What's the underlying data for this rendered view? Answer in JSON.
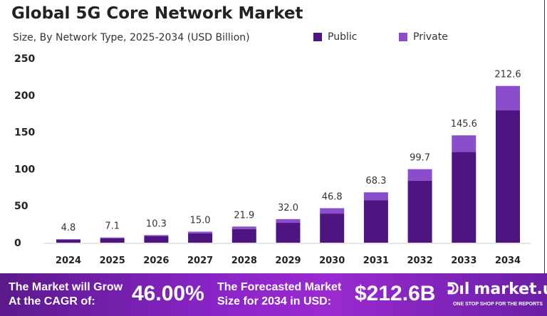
{
  "chart_data": {
    "type": "bar",
    "stacked": true,
    "title": "Global 5G Core Network Market",
    "subtitle": "Size, By Network Type, 2025-2034 (USD Billion)",
    "categories": [
      "2024",
      "2025",
      "2026",
      "2027",
      "2028",
      "2029",
      "2030",
      "2031",
      "2032",
      "2033",
      "2034"
    ],
    "series": [
      {
        "name": "Public",
        "color": "#4e1580",
        "values": [
          4.1,
          6.0,
          8.7,
          12.7,
          18.5,
          27.0,
          39.5,
          57.7,
          84.2,
          123.0,
          179.5
        ]
      },
      {
        "name": "Private",
        "color": "#8b4dcb",
        "values": [
          0.7,
          1.1,
          1.6,
          2.3,
          3.4,
          5.0,
          7.3,
          10.6,
          15.5,
          22.6,
          33.1
        ]
      }
    ],
    "totals": [
      "4.8",
      "7.1",
      "10.3",
      "15.0",
      "21.9",
      "32.0",
      "46.8",
      "68.3",
      "99.7",
      "145.6",
      "212.6"
    ],
    "yticks": [
      "0",
      "50",
      "100",
      "150",
      "200",
      "250"
    ],
    "ylim": [
      0,
      250
    ],
    "grid": false,
    "legend": "top-right"
  },
  "banner": {
    "cagr_text_1": "The Market will Grow",
    "cagr_text_2": "At the CAGR of:",
    "cagr": "46.00%",
    "forecast_text_1": "The Forecasted Market",
    "forecast_text_2": "Size for 2034 in USD:",
    "forecast": "$212.6B",
    "logo": "market.us",
    "logo_tagline": "ONE STOP SHOP FOR THE REPORTS"
  }
}
